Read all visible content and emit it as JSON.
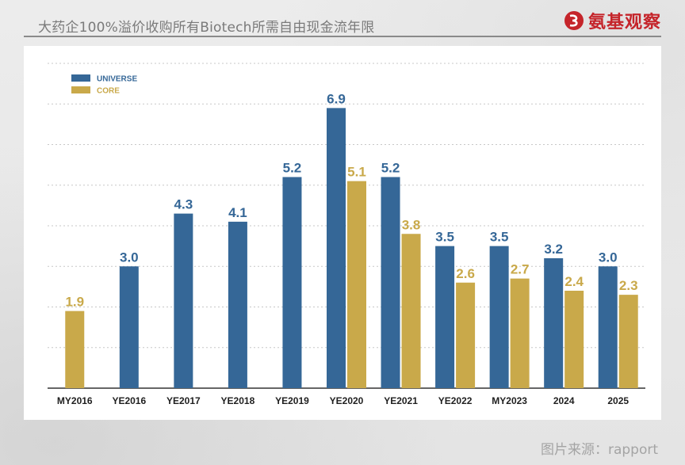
{
  "header": {
    "title": "大药企100%溢价收购所有Biotech所需自由现金流年限",
    "brand": "氨基观察"
  },
  "footer": {
    "source": "图片来源：rapport"
  },
  "colors": {
    "universe": "#356797",
    "core": "#c9a94a",
    "grid": "#c7c7c7",
    "axis": "#333333"
  },
  "chart_data": {
    "type": "bar",
    "title": "",
    "xlabel": "",
    "ylabel": "",
    "ylim": [
      0,
      8
    ],
    "grid": true,
    "legend_position": "top-left",
    "categories": [
      "MY2016",
      "YE2016",
      "YE2017",
      "YE2018",
      "YE2019",
      "YE2020",
      "YE2021",
      "YE2022",
      "MY2023",
      "2024",
      "2025"
    ],
    "series": [
      {
        "name": "UNIVERSE",
        "color": "#356797",
        "values": [
          null,
          3.0,
          4.3,
          4.1,
          5.2,
          6.9,
          5.2,
          3.5,
          3.5,
          3.2,
          3.0
        ]
      },
      {
        "name": "CORE",
        "color": "#c9a94a",
        "values": [
          1.9,
          null,
          null,
          null,
          null,
          5.1,
          3.8,
          2.6,
          2.7,
          2.4,
          2.3
        ]
      }
    ]
  }
}
